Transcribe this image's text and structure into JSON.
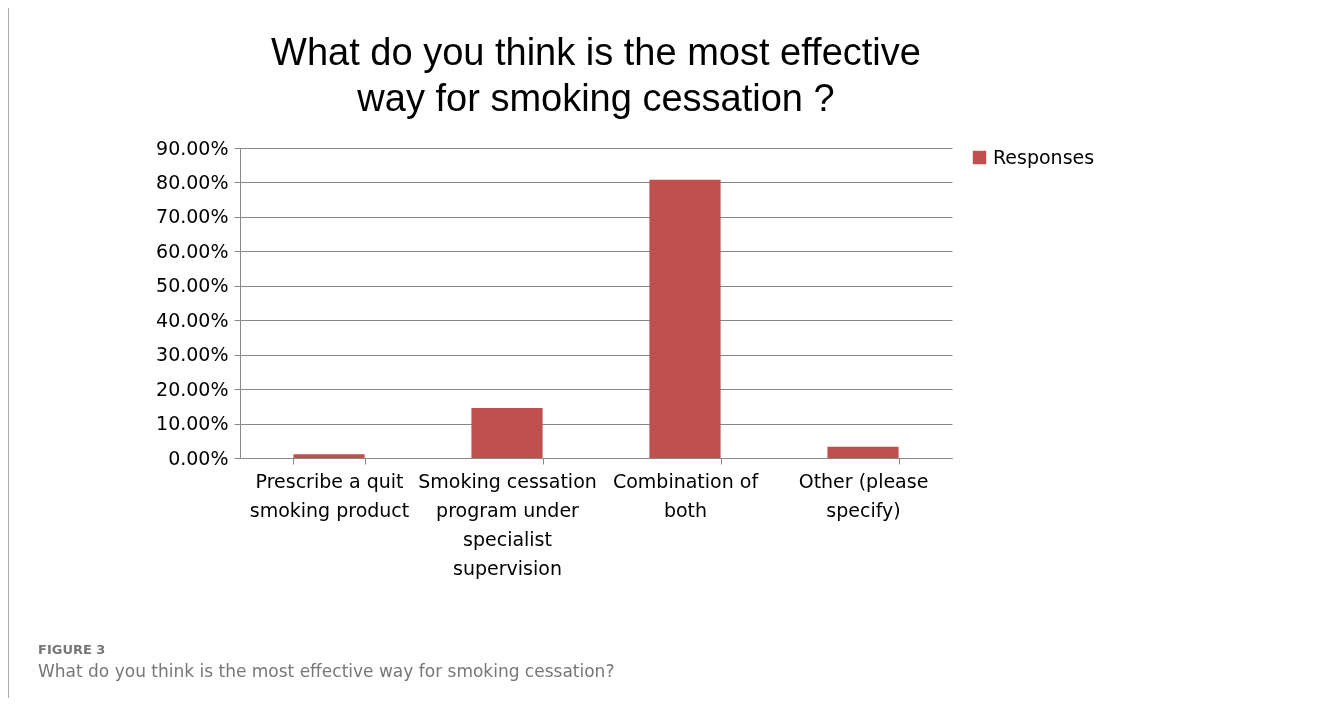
{
  "chart_data": {
    "type": "bar",
    "title": "What do you think is the most effective way for smoking cessation ?",
    "categories": [
      "Prescribe a quit smoking product",
      "Smoking cessation program under specialist supervision",
      "Combination of both",
      "Other (please specify)"
    ],
    "series": [
      {
        "name": "Responses",
        "color": "#c0504d",
        "values": [
          1.1,
          14.5,
          80.8,
          3.3
        ]
      }
    ],
    "ylim": [
      0,
      90
    ],
    "yticks": [
      {
        "value": 0,
        "label": "0.00%"
      },
      {
        "value": 10,
        "label": "10.00%"
      },
      {
        "value": 20,
        "label": "20.00%"
      },
      {
        "value": 30,
        "label": "30.00%"
      },
      {
        "value": 40,
        "label": "40.00%"
      },
      {
        "value": 50,
        "label": "50.00%"
      },
      {
        "value": 60,
        "label": "60.00%"
      },
      {
        "value": 70,
        "label": "70.00%"
      },
      {
        "value": 80,
        "label": "80.00%"
      },
      {
        "value": 90,
        "label": "90.00%"
      }
    ],
    "grid": "y",
    "legend": "right",
    "annotations": [
      "FIGURE 3",
      "What do you think is the most effective way for smoking cessation?"
    ]
  }
}
